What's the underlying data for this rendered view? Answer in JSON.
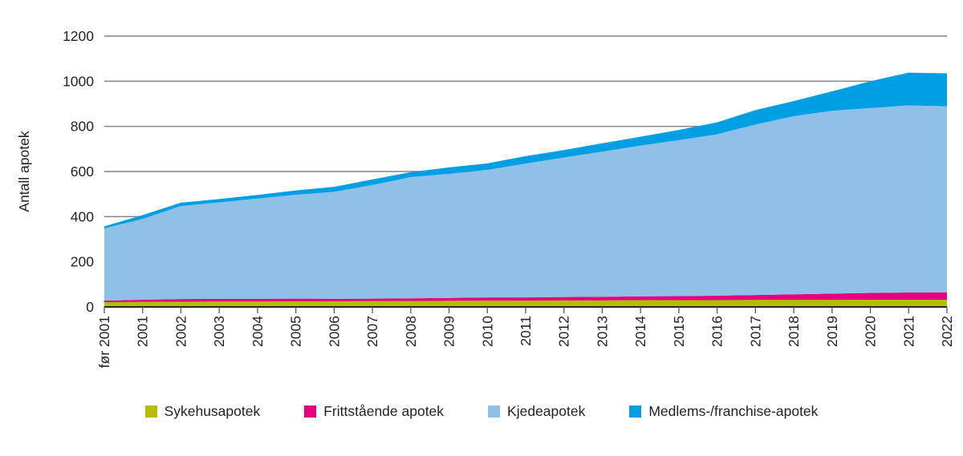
{
  "chart_data": {
    "type": "area",
    "stacked": true,
    "title": "",
    "xlabel": "",
    "ylabel": "Antall apotek",
    "ylim": [
      0,
      1200
    ],
    "y_ticks": [
      0,
      200,
      400,
      600,
      800,
      1000,
      1200
    ],
    "grid": "horizontal-gray-lines",
    "legend_position": "bottom",
    "categories": [
      "før 2001",
      "2001",
      "2002",
      "2003",
      "2004",
      "2005",
      "2006",
      "2007",
      "2008",
      "2009",
      "2010",
      "2011",
      "2012",
      "2013",
      "2014",
      "2015",
      "2016",
      "2017",
      "2018",
      "2019",
      "2020",
      "2021",
      "2022"
    ],
    "series": [
      {
        "name": "Sykehusapotek",
        "color": "#b5bd00",
        "values": [
          21,
          22,
          23,
          24,
          24,
          25,
          25,
          26,
          26,
          27,
          28,
          28,
          29,
          29,
          30,
          30,
          30,
          31,
          31,
          31,
          32,
          32,
          32
        ]
      },
      {
        "name": "Frittstående apotek",
        "color": "#e5007d",
        "values": [
          7,
          10,
          12,
          12,
          12,
          12,
          11,
          11,
          12,
          13,
          14,
          14,
          15,
          16,
          17,
          18,
          20,
          22,
          25,
          28,
          30,
          32,
          33
        ]
      },
      {
        "name": "Kjedeapotek",
        "color": "#8fc1e8",
        "values": [
          320,
          358,
          412,
          427,
          444,
          460,
          474,
          503,
          537,
          550,
          565,
          593,
          618,
          643,
          668,
          691,
          715,
          755,
          789,
          810,
          819,
          829,
          824
        ]
      },
      {
        "name": "Medlems-/franchise-apotek",
        "color": "#009fe3",
        "values": [
          9,
          17,
          15,
          15,
          16,
          19,
          22,
          25,
          22,
          28,
          29,
          33,
          33,
          37,
          39,
          45,
          53,
          64,
          67,
          86,
          119,
          145,
          146
        ]
      }
    ],
    "totals": [
      357,
      407,
      462,
      478,
      496,
      516,
      532,
      565,
      597,
      618,
      636,
      668,
      695,
      725,
      754,
      784,
      818,
      872,
      912,
      955,
      1000,
      1038,
      1035
    ]
  },
  "colors": {
    "background": "#ffffff",
    "grid_line": "#808080",
    "axis_line": "#262626",
    "tick_mark": "#595959",
    "text": "#231f20"
  }
}
